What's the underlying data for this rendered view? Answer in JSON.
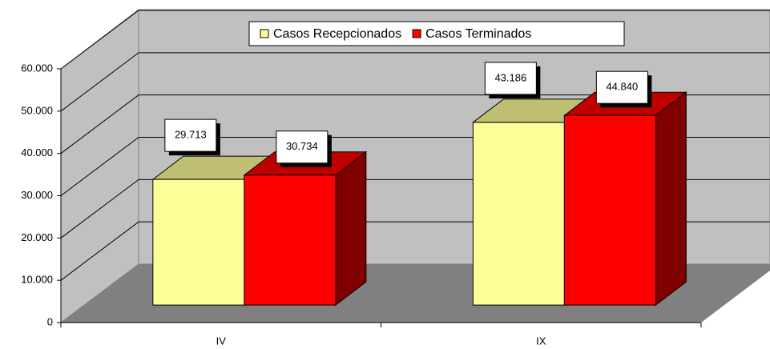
{
  "chart_data": {
    "type": "bar3d",
    "categories": [
      "IV",
      "IX"
    ],
    "series": [
      {
        "name": "Casos Recepcionados",
        "color": "#ffff99",
        "values": [
          29713,
          43186
        ],
        "value_labels": [
          "29.713",
          "43.186"
        ]
      },
      {
        "name": "Casos Terminados",
        "color": "#ff0000",
        "values": [
          30734,
          44840
        ],
        "value_labels": [
          "30.734",
          "44.840"
        ]
      }
    ],
    "ylim": [
      0,
      60000
    ],
    "yticks": [
      0,
      {
        "value": 10000,
        "label": "10.000"
      },
      {
        "value": 20000,
        "label": "20.000"
      },
      {
        "value": 30000,
        "label": "30.000"
      },
      {
        "value": 40000,
        "label": "40.000"
      },
      {
        "value": 50000,
        "label": "50.000"
      },
      {
        "value": 60000,
        "label": "60.000"
      }
    ],
    "grid": true,
    "legend": "top"
  }
}
